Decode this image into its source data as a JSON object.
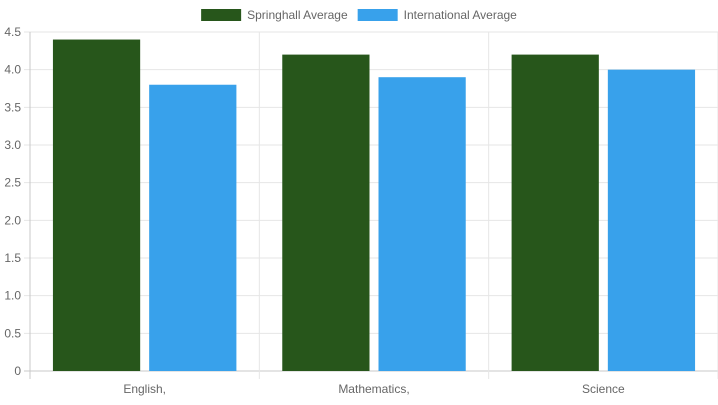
{
  "chart_data": {
    "type": "bar",
    "categories": [
      "English,",
      "Mathematics,",
      "Science"
    ],
    "series": [
      {
        "name": "Springhall Average",
        "values": [
          4.4,
          4.2,
          4.2
        ],
        "color": "#27561b"
      },
      {
        "name": "International Average",
        "values": [
          3.8,
          3.9,
          4.0
        ],
        "color": "#38a1eb"
      }
    ],
    "ylim": [
      0,
      4.5
    ],
    "yticks": [
      "0",
      "0.5",
      "1.0",
      "1.5",
      "2.0",
      "2.5",
      "3.0",
      "3.5",
      "4.0",
      "4.5"
    ],
    "grid": true,
    "legend_position": "top-center",
    "title": "",
    "xlabel": "",
    "ylabel": ""
  }
}
